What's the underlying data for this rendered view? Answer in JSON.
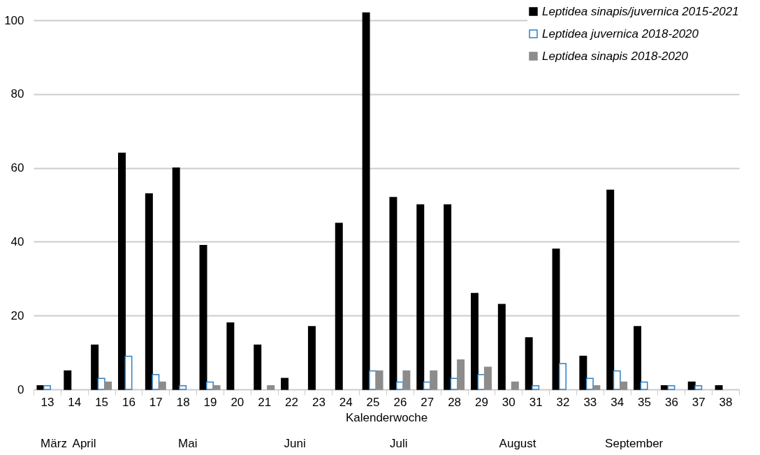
{
  "chart_data": {
    "type": "bar",
    "categories": [
      "13",
      "14",
      "15",
      "16",
      "17",
      "18",
      "19",
      "20",
      "21",
      "22",
      "23",
      "24",
      "25",
      "26",
      "27",
      "28",
      "29",
      "30",
      "31",
      "32",
      "33",
      "34",
      "35",
      "36",
      "37",
      "38"
    ],
    "series": [
      {
        "name": "Leptidea sinapis/juvernica 2015-2021",
        "color": "#000000",
        "values": [
          1,
          5,
          12,
          64,
          53,
          60,
          39,
          18,
          12,
          3,
          17,
          45,
          102,
          52,
          50,
          50,
          26,
          23,
          14,
          38,
          9,
          54,
          17,
          1,
          2,
          1
        ]
      },
      {
        "name": "Leptidea juvernica 2018-2020",
        "color": "#2e7fc4",
        "values": [
          1,
          null,
          3,
          9,
          4,
          1,
          2,
          null,
          null,
          null,
          null,
          null,
          5,
          2,
          2,
          3,
          4,
          null,
          1,
          7,
          3,
          5,
          2,
          1,
          1,
          null
        ]
      },
      {
        "name": "Leptidea sinapis 2018-2020",
        "color": "#8c8c8c",
        "values": [
          null,
          null,
          2,
          null,
          2,
          null,
          1,
          null,
          1,
          null,
          null,
          null,
          5,
          5,
          5,
          8,
          6,
          2,
          null,
          null,
          1,
          2,
          null,
          null,
          null,
          null
        ]
      }
    ],
    "xlabel": "Kalenderwoche",
    "annotations": [
      "März",
      "April",
      "Mai",
      "Juni",
      "Juli",
      "August",
      "September"
    ],
    "ylim": [
      0,
      104
    ],
    "yticks": [
      0,
      20,
      40,
      60,
      80,
      100
    ],
    "grid": "y",
    "legend": "top right"
  }
}
